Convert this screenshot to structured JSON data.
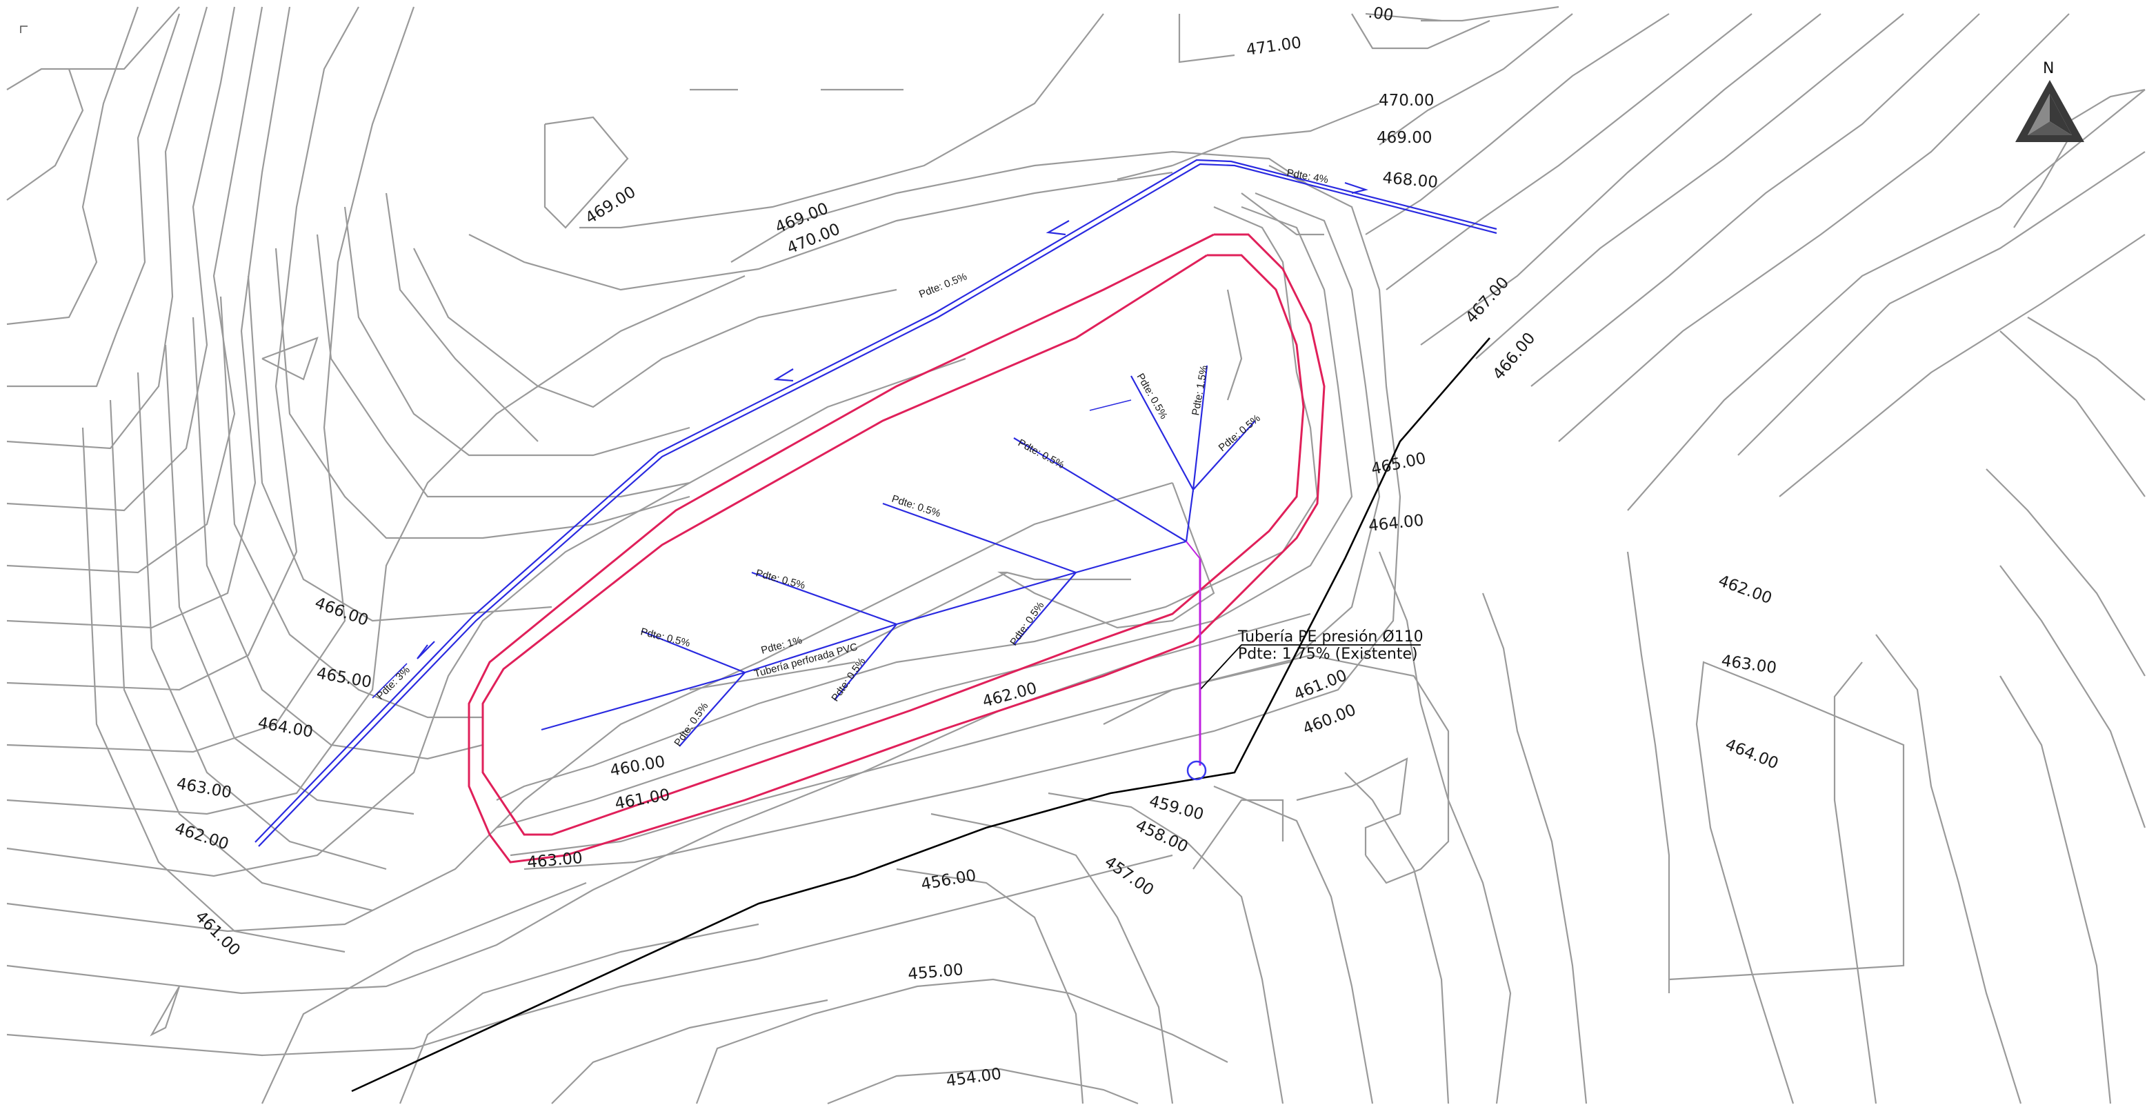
{
  "contour_labels": [
    "471.00",
    "470.00",
    "469.00",
    "468.00",
    "469.00",
    "470.00",
    "469.00",
    "467.00",
    "466.00",
    "465.00",
    "464.00",
    "462.00",
    "463.00",
    "464.00",
    "466.00",
    "465.00",
    "464.00",
    "463.00",
    "462.00",
    "461.00",
    "460.00",
    "461.00",
    "463.00",
    "462.00",
    "461.00",
    "460.00",
    "459.00",
    "458.00",
    "457.00",
    "456.00",
    "455.00",
    "454.00"
  ],
  "slope_labels": [
    "Pdte: 4%",
    "Pdte: 0.5%",
    "Pdte: 3%",
    "Pdte: 0.5%",
    "Pdte: 1.5%",
    "Pdte: 0.5%",
    "Pdte: 0.5%",
    "Pdte: 0.5%",
    "Pdte: 0.5%",
    "Pdte: 0.5%",
    "Pdte: 0.5%",
    "Pdte: 1%",
    "Pdte: 0.5%",
    "Pdte: 0.5%"
  ],
  "pipe_label": "Tubería perforada PVC",
  "existing_pipe": {
    "line1": "Tubería PE presión Ø110",
    "line2": "Pdte: 1.75%   (Existente)"
  },
  "north_label": "N",
  "partial_label": ".00",
  "colors": {
    "contour": "#9a9a9a",
    "drain_blue": "#2a2ae0",
    "pond_red": "#e0205a",
    "existing_black": "#000000",
    "outlet_magenta": "#c020e0"
  }
}
